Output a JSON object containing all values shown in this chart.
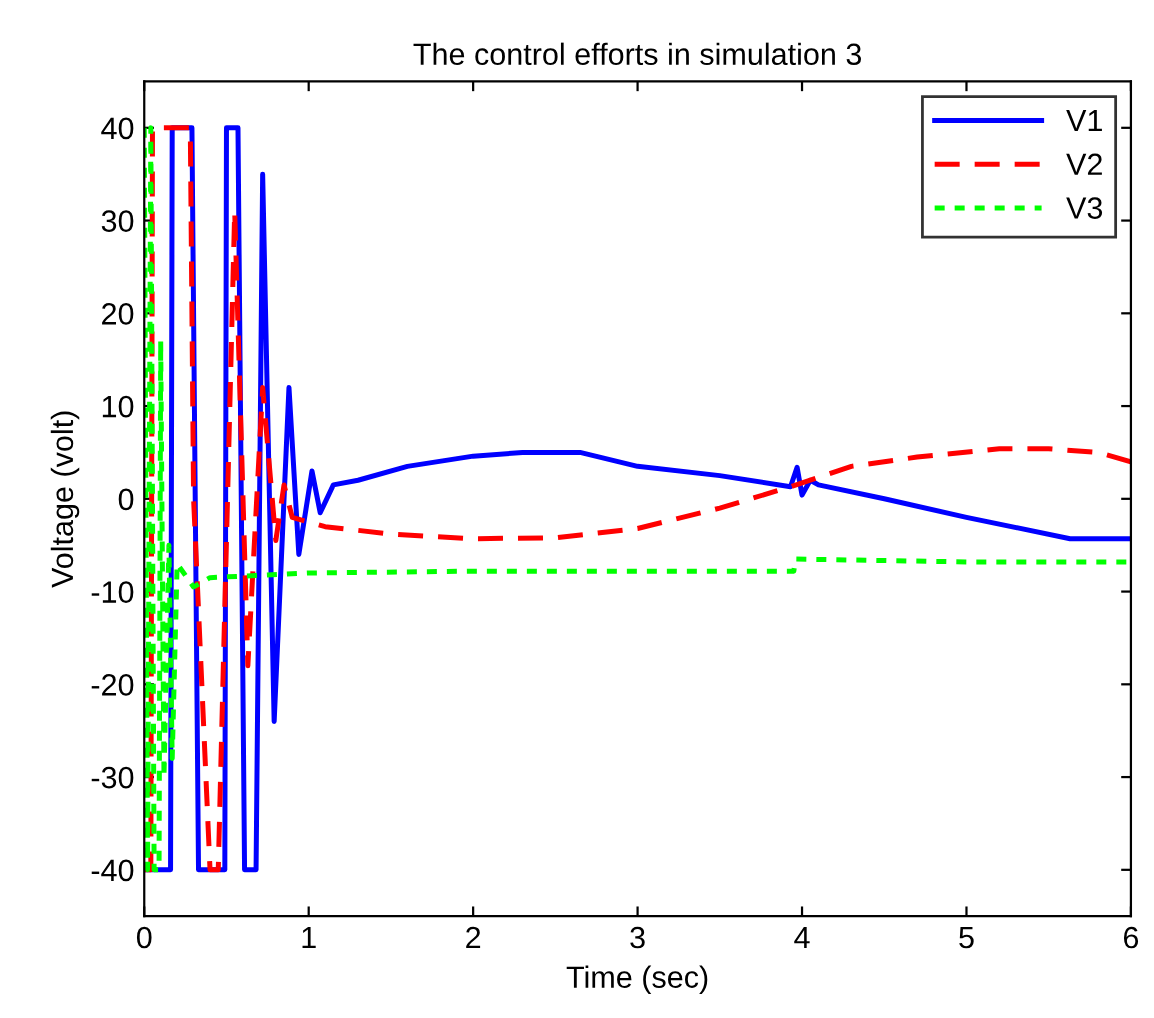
{
  "chart_data": {
    "type": "line",
    "title": "The control efforts in simulation 3",
    "xlabel": "Time (sec)",
    "ylabel": "Voltage (volt)",
    "xlim": [
      0,
      6
    ],
    "ylim": [
      -45,
      45
    ],
    "xticks": [
      0,
      1,
      2,
      3,
      4,
      5,
      6
    ],
    "yticks": [
      -40,
      -30,
      -20,
      -10,
      0,
      10,
      20,
      30,
      40
    ],
    "grid": false,
    "legend": "top right",
    "marker": "none",
    "series": [
      {
        "name": "V1",
        "color": "#0000ff",
        "line_style": "solid",
        "x": [
          0,
          0.16,
          0.17,
          0.29,
          0.31,
          0.33,
          0.49,
          0.5,
          0.57,
          0.61,
          0.68,
          0.72,
          0.79,
          0.88,
          0.94,
          1.02,
          1.07,
          1.15,
          1.3,
          1.6,
          2.0,
          2.3,
          2.65,
          3.0,
          3.5,
          3.93,
          3.97,
          4.0,
          4.05,
          4.1,
          4.5,
          5.0,
          5.63,
          6.0
        ],
        "values": [
          -40,
          -40,
          40,
          40,
          0,
          -40,
          -40,
          40,
          40,
          -40,
          -40,
          35,
          -24,
          12,
          -6,
          3,
          -1.5,
          1.5,
          2,
          3.5,
          4.6,
          5,
          5,
          3.5,
          2.5,
          1.3,
          3.4,
          0.4,
          2,
          1.5,
          0,
          -2,
          -4.3,
          -4.3
        ]
      },
      {
        "name": "V2",
        "color": "#ff0000",
        "line_style": "dashed",
        "x": [
          0,
          0.04,
          0.05,
          0.28,
          0.3,
          0.4,
          0.45,
          0.55,
          0.63,
          0.72,
          0.8,
          0.85,
          0.9,
          1.1,
          1.5,
          2.0,
          2.5,
          3.0,
          3.5,
          3.93,
          4.3,
          4.7,
          5.2,
          5.5,
          5.8,
          6.0
        ],
        "values": [
          -40,
          -40,
          40,
          40,
          0,
          -40,
          -40,
          31,
          -18,
          12,
          -4.5,
          1.5,
          -2,
          -3,
          -3.8,
          -4.3,
          -4.2,
          -3.2,
          -1,
          1.3,
          3.5,
          4.5,
          5.4,
          5.4,
          5,
          4
        ]
      },
      {
        "name": "V3",
        "color": "#00ff00",
        "line_style": "dotted",
        "x": [
          0,
          0.02,
          0.04,
          0.06,
          0.09,
          0.1,
          0.12,
          0.15,
          0.17,
          0.2,
          0.3,
          0.4,
          1.0,
          2.0,
          3.95,
          3.96,
          5.0,
          6.0
        ],
        "values": [
          40,
          -40,
          40,
          -40,
          -40,
          17,
          -30,
          -5,
          -28,
          -7,
          -9.5,
          -8.5,
          -8,
          -7.8,
          -7.8,
          -6.5,
          -6.8,
          -6.8
        ]
      }
    ]
  }
}
